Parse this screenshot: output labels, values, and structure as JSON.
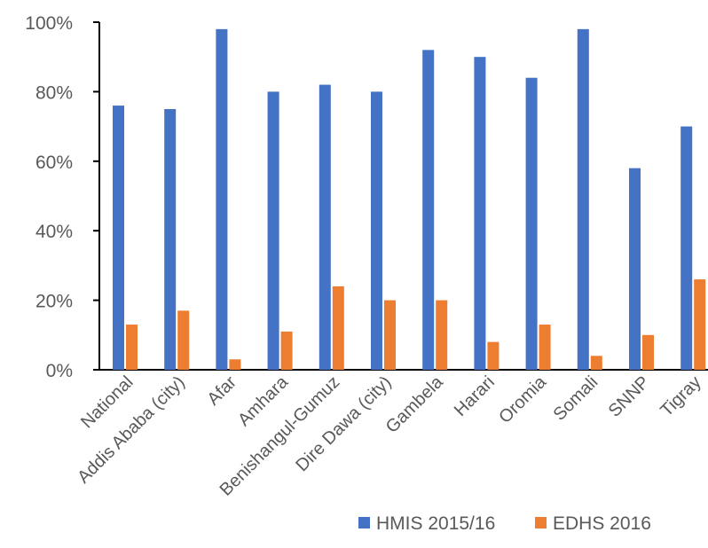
{
  "chart_data": {
    "type": "bar",
    "title": "",
    "xlabel": "",
    "ylabel": "",
    "categories": [
      "National",
      "Addis Ababa (city)",
      "Afar",
      "Amhara",
      "Benishangul-Gumuz",
      "Dire Dawa (city)",
      "Gambela",
      "Harari",
      "Oromia",
      "Somali",
      "SNNP",
      "Tigray"
    ],
    "series": [
      {
        "name": "HMIS 2015/16",
        "color": "#4472C4",
        "values": [
          76,
          75,
          98,
          80,
          82,
          80,
          92,
          90,
          84,
          98,
          58,
          70
        ]
      },
      {
        "name": "EDHS 2016",
        "color": "#ED7D31",
        "values": [
          13,
          17,
          3,
          11,
          24,
          20,
          20,
          8,
          13,
          4,
          10,
          26
        ]
      }
    ],
    "ylim": [
      0,
      100
    ],
    "yticks": [
      0,
      20,
      40,
      60,
      80,
      100
    ],
    "ytick_labels": [
      "0%",
      "20%",
      "40%",
      "60%",
      "80%",
      "100%"
    ],
    "grid": false,
    "legend_position": "bottom-right"
  }
}
